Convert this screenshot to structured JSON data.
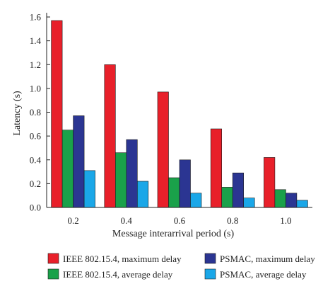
{
  "chart_data": {
    "type": "bar",
    "xlabel": "Message interarrival period (s)",
    "ylabel": "Latency (s)",
    "categories": [
      "0.2",
      "0.4",
      "0.6",
      "0.8",
      "1.0"
    ],
    "ylim": [
      0,
      1.6
    ],
    "yticks": [
      "0.0",
      "0.2",
      "0.4",
      "0.6",
      "0.8",
      "1.0",
      "1.2",
      "1.4",
      "1.6"
    ],
    "grid": false,
    "legend_position": "bottom",
    "series": [
      {
        "name": "IEEE 802.15.4, maximum delay",
        "color": "#e8202a",
        "values": [
          1.57,
          1.2,
          0.97,
          0.66,
          0.42
        ]
      },
      {
        "name": "IEEE 802.15.4, average delay",
        "color": "#1aa14a",
        "values": [
          0.65,
          0.46,
          0.25,
          0.17,
          0.15
        ]
      },
      {
        "name": "PSMAC, maximum delay",
        "color": "#2b3592",
        "values": [
          0.77,
          0.57,
          0.4,
          0.29,
          0.12
        ]
      },
      {
        "name": "PSMAC, average delay",
        "color": "#1aa7e8",
        "values": [
          0.31,
          0.22,
          0.12,
          0.08,
          0.06
        ]
      }
    ]
  }
}
